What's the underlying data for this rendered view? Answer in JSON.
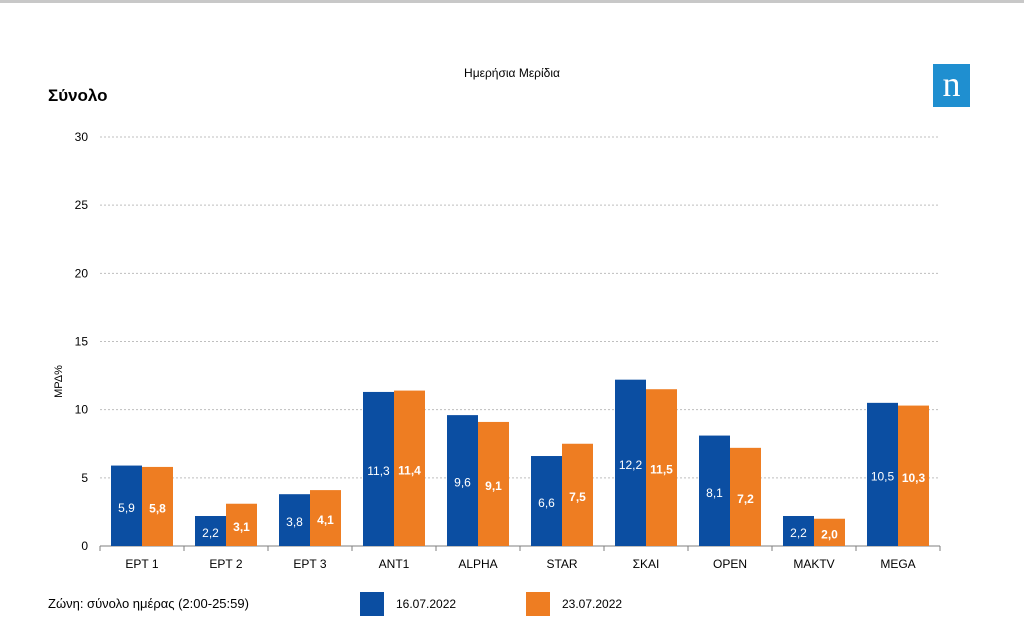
{
  "header": {
    "title": "Ημερήσια Μερίδια",
    "section": "Σύνολο",
    "logo_text": "n"
  },
  "footer": {
    "zone": "Ζώνη: σύνολο ημέρας (2:00-25:59)"
  },
  "colors": {
    "series1": "#0b4ea2",
    "series2": "#ee7d22",
    "grid": "#bfbfbf",
    "axis": "#7f7f7f",
    "logo": "#1f8fd0"
  },
  "chart_data": {
    "type": "bar",
    "title": "Ημερήσια Μερίδια",
    "ylabel": "ΜΡΔ%",
    "xlabel": "",
    "ylim": [
      0,
      30
    ],
    "yticks": [
      0,
      5,
      10,
      15,
      20,
      25,
      30
    ],
    "grid": true,
    "legend": "bottom",
    "categories": [
      "ΕΡΤ 1",
      "ΕΡΤ 2",
      "ΕΡΤ 3",
      "ANT1",
      "ALPHA",
      "STAR",
      "ΣΚΑΙ",
      "OPEN",
      "MAKTV",
      "MEGA"
    ],
    "series": [
      {
        "name": "16.07.2022",
        "values": [
          5.9,
          2.2,
          3.8,
          11.3,
          9.6,
          6.6,
          12.2,
          8.1,
          2.2,
          10.5
        ],
        "labels": [
          "5,9",
          "2,2",
          "3,8",
          "11,3",
          "9,6",
          "6,6",
          "12,2",
          "8,1",
          "2,2",
          "10,5"
        ]
      },
      {
        "name": "23.07.2022",
        "values": [
          5.8,
          3.1,
          4.1,
          11.4,
          9.1,
          7.5,
          11.5,
          7.2,
          2.0,
          10.3
        ],
        "labels": [
          "5,8",
          "3,1",
          "4,1",
          "11,4",
          "9,1",
          "7,5",
          "11,5",
          "7,2",
          "2,0",
          "10,3"
        ]
      }
    ]
  }
}
